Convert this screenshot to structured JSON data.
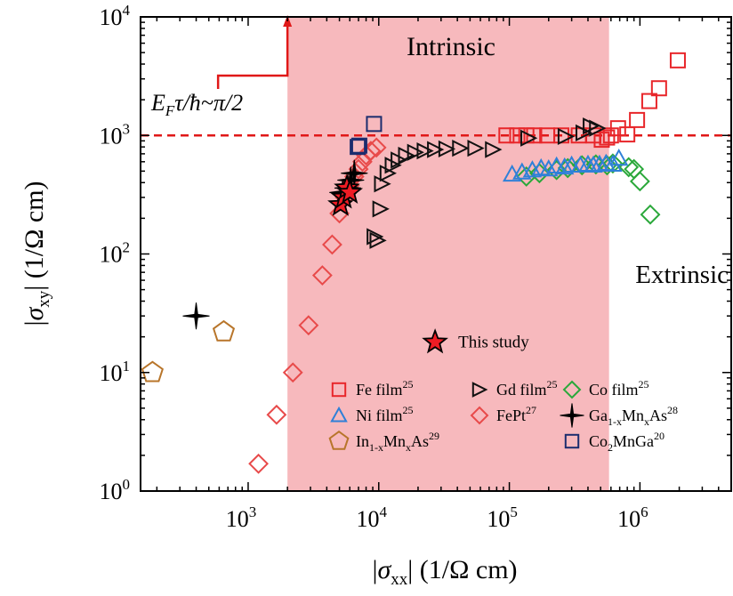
{
  "chart_data": {
    "type": "scatter",
    "x_scale": "log",
    "y_scale": "log",
    "xlim": [
      150,
      5000000
    ],
    "ylim": [
      1,
      10000
    ],
    "x_ticks": [
      {
        "value": 1000,
        "base": "10",
        "exp": "3"
      },
      {
        "value": 10000,
        "base": "10",
        "exp": "4"
      },
      {
        "value": 100000,
        "base": "10",
        "exp": "5"
      },
      {
        "value": 1000000,
        "base": "10",
        "exp": "6"
      }
    ],
    "y_ticks": [
      {
        "value": 1,
        "base": "10",
        "exp": "0"
      },
      {
        "value": 10,
        "base": "10",
        "exp": "1"
      },
      {
        "value": 100,
        "base": "10",
        "exp": "2"
      },
      {
        "value": 1000,
        "base": "10",
        "exp": "3"
      },
      {
        "value": 10000,
        "base": "10",
        "exp": "4"
      }
    ],
    "xlabel": {
      "pre": "|",
      "sym": "σ",
      "sub": "xx",
      "post": "| (1/Ω cm)"
    },
    "ylabel": {
      "pre": "|",
      "sym": "σ",
      "sub": "xy",
      "post": "| (1/Ω cm)"
    },
    "intrinsic_region": {
      "x_from": 2000,
      "x_to": 580000,
      "color": "#f7b9bd",
      "label": "Intrinsic"
    },
    "extrinsic_label": "Extrinsic",
    "threshold": {
      "y": 1000,
      "color": "#e01818",
      "label_main": "E",
      "label_sub": "F",
      "label_rest": "τ/ħ~π/2",
      "arrow_x": 2000
    },
    "this_study": {
      "x": 27000,
      "y": 18,
      "label": "This study",
      "color": "#ee1c24"
    },
    "series": [
      {
        "name": "Fe film",
        "sup": "25",
        "marker": "square",
        "color": "#e8262a",
        "points": [
          [
            95000,
            1000
          ],
          [
            115000,
            1000
          ],
          [
            135000,
            1000
          ],
          [
            155000,
            1000
          ],
          [
            195000,
            1000
          ],
          [
            250000,
            1000
          ],
          [
            340000,
            1000
          ],
          [
            440000,
            1000
          ],
          [
            510000,
            920
          ],
          [
            560000,
            960
          ],
          [
            600000,
            1000
          ],
          [
            680000,
            1150
          ],
          [
            800000,
            1020
          ],
          [
            950000,
            1350
          ],
          [
            1180000,
            1950
          ],
          [
            1400000,
            2500
          ],
          [
            1950000,
            4300
          ]
        ]
      },
      {
        "name": "Gd film",
        "sup": "25",
        "marker": "triangle-right",
        "color": "#111111",
        "points": [
          [
            9300,
            140
          ],
          [
            9800,
            130
          ],
          [
            10300,
            240
          ],
          [
            10600,
            390
          ],
          [
            11700,
            480
          ],
          [
            12800,
            560
          ],
          [
            14200,
            620
          ],
          [
            16200,
            680
          ],
          [
            19000,
            720
          ],
          [
            22500,
            740
          ],
          [
            27000,
            760
          ],
          [
            33000,
            770
          ],
          [
            42000,
            780
          ],
          [
            55000,
            780
          ],
          [
            75000,
            760
          ],
          [
            140000,
            950
          ],
          [
            270000,
            980
          ],
          [
            370000,
            1050
          ],
          [
            420000,
            1200
          ],
          [
            470000,
            1150
          ]
        ]
      },
      {
        "name": "Co film",
        "sup": "25",
        "marker": "diamond",
        "color": "#2aa83a",
        "points": [
          [
            135000,
            450
          ],
          [
            170000,
            480
          ],
          [
            230000,
            510
          ],
          [
            280000,
            530
          ],
          [
            360000,
            560
          ],
          [
            460000,
            570
          ],
          [
            560000,
            560
          ],
          [
            620000,
            580
          ],
          [
            820000,
            540
          ],
          [
            900000,
            520
          ],
          [
            1000000,
            410
          ],
          [
            1200000,
            215
          ]
        ]
      },
      {
        "name": "Ni film",
        "sup": "25",
        "marker": "triangle-up",
        "color": "#2f80d8",
        "points": [
          [
            105000,
            470
          ],
          [
            125000,
            490
          ],
          [
            150000,
            510
          ],
          [
            175000,
            530
          ],
          [
            200000,
            520
          ],
          [
            230000,
            550
          ],
          [
            265000,
            540
          ],
          [
            300000,
            560
          ],
          [
            350000,
            560
          ],
          [
            400000,
            570
          ],
          [
            440000,
            560
          ],
          [
            490000,
            570
          ],
          [
            550000,
            580
          ],
          [
            620000,
            570
          ],
          [
            690000,
            640
          ]
        ]
      },
      {
        "name": "FePt",
        "sup": "27",
        "marker": "diamond",
        "color": "#e84a4a",
        "points": [
          [
            1200,
            1.7
          ],
          [
            1650,
            4.4
          ],
          [
            2200,
            10
          ],
          [
            2900,
            25
          ],
          [
            3700,
            66
          ],
          [
            4400,
            120
          ],
          [
            5000,
            220
          ],
          [
            5500,
            300
          ],
          [
            6000,
            380
          ],
          [
            6500,
            450
          ],
          [
            7000,
            520
          ],
          [
            7500,
            600
          ],
          [
            8000,
            680
          ],
          [
            8700,
            740
          ],
          [
            9600,
            790
          ]
        ]
      },
      {
        "name": "Ga",
        "sub": "1-x",
        "name2": "Mn",
        "sub2": "x",
        "name3": "As",
        "sup": "28",
        "marker": "star4",
        "color": "#000000",
        "points": [
          [
            400,
            30
          ],
          [
            5300,
            330
          ],
          [
            5800,
            360
          ],
          [
            6100,
            420
          ],
          [
            6500,
            480
          ]
        ]
      },
      {
        "name": "In",
        "sub": "1-x",
        "name2": "Mn",
        "sub2": "x",
        "name3": "As",
        "sup": "29",
        "marker": "pentagon",
        "color": "#b8752a",
        "points": [
          [
            185,
            10
          ],
          [
            650,
            22
          ]
        ]
      },
      {
        "name": "Co",
        "sub": "2",
        "name2": "MnGa",
        "sup": "20",
        "marker": "square",
        "color": "#1c2d6e",
        "points": [
          [
            6900,
            800
          ],
          [
            7100,
            820
          ],
          [
            9200,
            1250
          ]
        ]
      },
      {
        "name": "This study",
        "marker": "star5",
        "color": "#ee1c24",
        "legend": false,
        "points": [
          [
            5100,
            260
          ],
          [
            5400,
            300
          ],
          [
            5700,
            360
          ],
          [
            6000,
            330
          ]
        ]
      }
    ]
  }
}
